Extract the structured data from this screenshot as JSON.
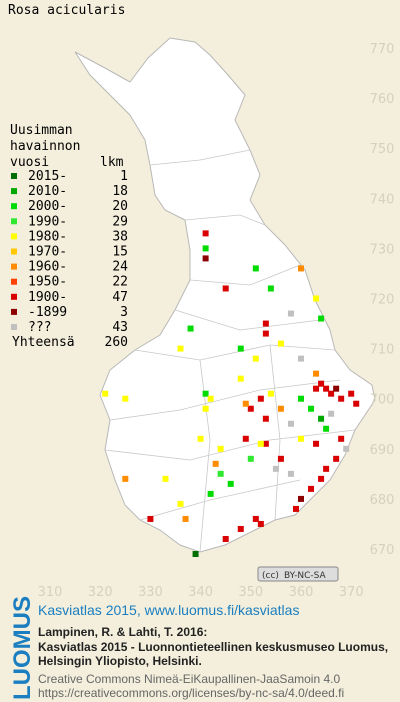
{
  "title": "Rosa acicularis",
  "legend": {
    "heading": [
      "Uusimman",
      "havainnon",
      "vuosi"
    ],
    "count_header": "lkm",
    "items": [
      {
        "label": "2015-",
        "count": 1,
        "color": "#006e00"
      },
      {
        "label": "2010-",
        "count": 18,
        "color": "#00a800"
      },
      {
        "label": "2000-",
        "count": 20,
        "color": "#00dc00"
      },
      {
        "label": "1990-",
        "count": 29,
        "color": "#30e830"
      },
      {
        "label": "1980-",
        "count": 38,
        "color": "#ffff00"
      },
      {
        "label": "1970-",
        "count": 15,
        "color": "#ffc800"
      },
      {
        "label": "1960-",
        "count": 24,
        "color": "#ff8c00"
      },
      {
        "label": "1950-",
        "count": 22,
        "color": "#ff4000"
      },
      {
        "label": "1900-",
        "count": 47,
        "color": "#d80000"
      },
      {
        "label": "-1899",
        "count": 3,
        "color": "#8c0000"
      },
      {
        "label": "???",
        "count": 43,
        "color": "#c0c0c0"
      }
    ],
    "total_label": "Yhteensä",
    "total": 260
  },
  "yticks": [
    770,
    760,
    750,
    740,
    730,
    720,
    710,
    700,
    690,
    680,
    670
  ],
  "xticks": [
    310,
    320,
    330,
    340,
    350,
    360,
    370
  ],
  "points": [
    [
      341,
      733,
      8
    ],
    [
      341,
      730,
      2
    ],
    [
      341,
      728,
      9
    ],
    [
      351,
      726,
      2
    ],
    [
      360,
      726,
      6
    ],
    [
      345,
      722,
      8
    ],
    [
      354,
      722,
      2
    ],
    [
      363,
      720,
      4
    ],
    [
      353,
      715,
      8
    ],
    [
      353,
      713,
      8
    ],
    [
      338,
      714,
      2
    ],
    [
      364,
      716,
      2
    ],
    [
      348,
      710,
      2
    ],
    [
      356,
      711,
      4
    ],
    [
      351,
      708,
      4
    ],
    [
      348,
      704,
      4
    ],
    [
      363,
      705,
      6
    ],
    [
      364,
      703,
      8
    ],
    [
      365,
      702,
      8
    ],
    [
      366,
      701,
      8
    ],
    [
      363,
      702,
      8
    ],
    [
      367,
      702,
      9
    ],
    [
      368,
      700,
      8
    ],
    [
      370,
      701,
      8
    ],
    [
      371,
      699,
      8
    ],
    [
      360,
      700,
      2
    ],
    [
      362,
      698,
      2
    ],
    [
      364,
      696,
      1
    ],
    [
      365,
      694,
      2
    ],
    [
      366,
      697,
      10
    ],
    [
      358,
      695,
      10
    ],
    [
      352,
      700,
      8
    ],
    [
      354,
      701,
      4
    ],
    [
      350,
      698,
      8
    ],
    [
      349,
      699,
      6
    ],
    [
      356,
      698,
      6
    ],
    [
      353,
      696,
      8
    ],
    [
      360,
      692,
      4
    ],
    [
      363,
      691,
      8
    ],
    [
      368,
      692,
      8
    ],
    [
      369,
      690,
      10
    ],
    [
      367,
      688,
      8
    ],
    [
      365,
      686,
      8
    ],
    [
      364,
      684,
      8
    ],
    [
      362,
      682,
      8
    ],
    [
      360,
      680,
      9
    ],
    [
      359,
      678,
      8
    ],
    [
      352,
      675,
      8
    ],
    [
      351,
      676,
      8
    ],
    [
      348,
      674,
      8
    ],
    [
      345,
      672,
      8
    ],
    [
      339,
      669,
      0
    ],
    [
      341,
      701,
      2
    ],
    [
      342,
      700,
      4
    ],
    [
      341,
      698,
      4
    ],
    [
      340,
      692,
      4
    ],
    [
      344,
      690,
      4
    ],
    [
      343,
      687,
      6
    ],
    [
      344,
      685,
      3
    ],
    [
      346,
      683,
      2
    ],
    [
      342,
      681,
      2
    ],
    [
      336,
      679,
      4
    ],
    [
      337,
      676,
      6
    ],
    [
      333,
      684,
      4
    ],
    [
      330,
      676,
      8
    ],
    [
      325,
      700,
      4
    ],
    [
      325,
      684,
      6
    ],
    [
      321,
      701,
      4
    ],
    [
      336,
      710,
      4
    ],
    [
      353,
      691,
      8
    ],
    [
      356,
      688,
      8
    ],
    [
      349,
      692,
      8
    ],
    [
      352,
      691,
      4
    ],
    [
      350,
      688,
      3
    ],
    [
      355,
      686,
      10
    ],
    [
      358,
      685,
      10
    ],
    [
      360,
      708,
      10
    ],
    [
      358,
      717,
      10
    ]
  ],
  "license_badge": "BY-NC-SA",
  "footer": {
    "brand": "LUOMUS",
    "headline": "Kasviatlas 2015, www.luomus.fi/kasviatlas",
    "citation": [
      "Lampinen, R. & Lahti, T. 2016:",
      "Kasviatlas 2015 - Luonnontieteellinen keskusmuseo Luomus,",
      "Helsingin Yliopisto, Helsinki."
    ],
    "license": [
      "Creative Commons Nimeä-EiKaupallinen-JaaSamoin 4.0",
      "https://creativecommons.org/licenses/by-nc-sa/4.0/deed.fi"
    ]
  }
}
